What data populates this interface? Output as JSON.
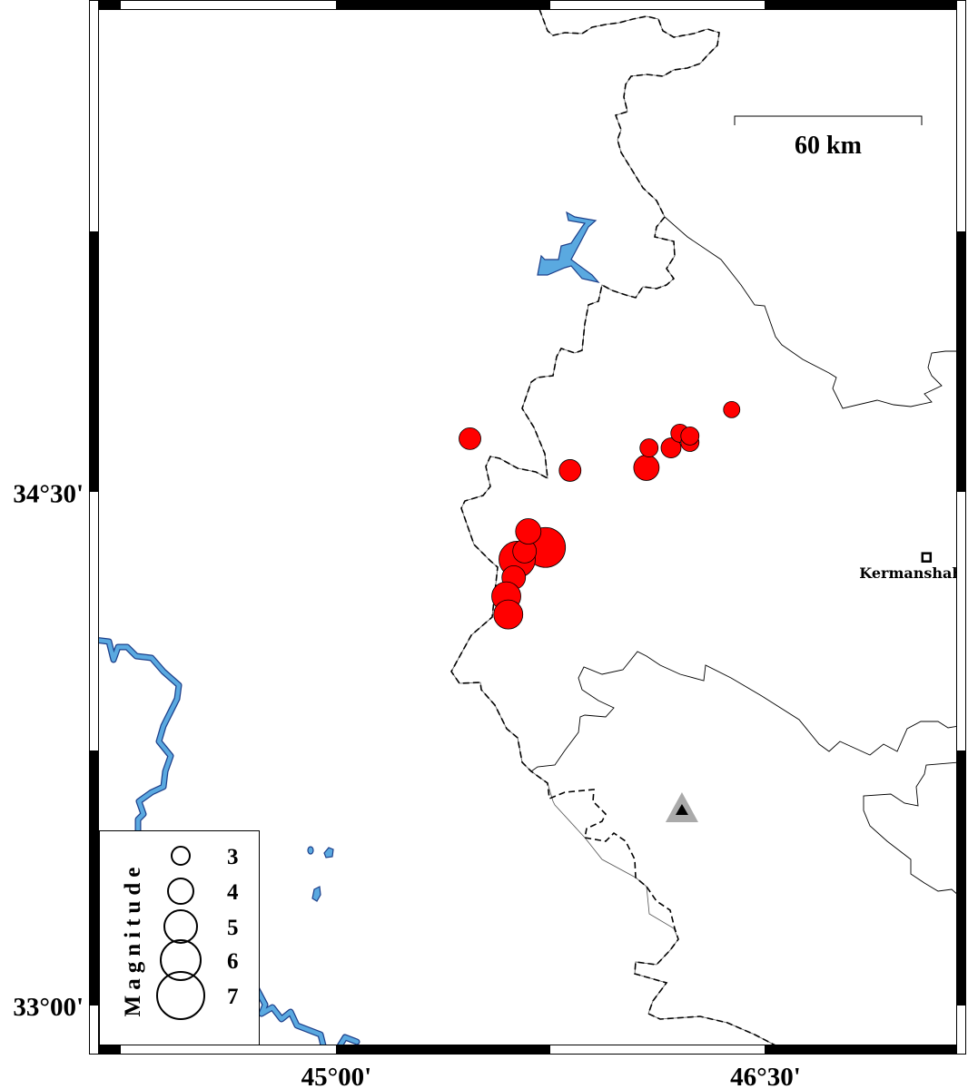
{
  "map": {
    "extent": {
      "lon_min": 44.167,
      "lon_max": 47.17,
      "lat_min": 32.88,
      "lat_max": 35.91
    },
    "x_ticks": [
      {
        "lon": 45.0,
        "label": "45°00'"
      },
      {
        "lon": 46.5,
        "label": "46°30'"
      }
    ],
    "y_ticks": [
      {
        "lat": 34.5,
        "label": "34°30'"
      },
      {
        "lat": 33.0,
        "label": "33°00'"
      }
    ],
    "scale_bar": {
      "label": "60 km",
      "km": 60
    },
    "colors": {
      "event_fill": "#ff0000",
      "water": "#5aa9e0",
      "station": "#aaaaaa"
    },
    "city": {
      "name": "Kermanshah",
      "lon": 47.063,
      "lat": 34.307,
      "icon": "square-icon"
    },
    "station": {
      "lon": 46.208,
      "lat": 33.57,
      "icon": "triangle-icon"
    },
    "events": [
      {
        "lon": 45.467,
        "lat": 34.654,
        "mag": 3.5
      },
      {
        "lon": 45.817,
        "lat": 34.561,
        "mag": 3.5
      },
      {
        "lon": 46.084,
        "lat": 34.569,
        "mag": 4.0
      },
      {
        "lon": 46.093,
        "lat": 34.627,
        "mag": 3.0
      },
      {
        "lon": 46.17,
        "lat": 34.627,
        "mag": 3.25
      },
      {
        "lon": 46.201,
        "lat": 34.67,
        "mag": 3.0
      },
      {
        "lon": 46.236,
        "lat": 34.643,
        "mag": 3.0
      },
      {
        "lon": 46.236,
        "lat": 34.662,
        "mag": 3.0
      },
      {
        "lon": 46.382,
        "lat": 34.739,
        "mag": 2.75
      },
      {
        "lon": 45.731,
        "lat": 34.336,
        "mag": 6.0
      },
      {
        "lon": 45.632,
        "lat": 34.301,
        "mag": 5.5
      },
      {
        "lon": 45.658,
        "lat": 34.325,
        "mag": 3.75
      },
      {
        "lon": 45.671,
        "lat": 34.383,
        "mag": 4.0
      },
      {
        "lon": 45.62,
        "lat": 34.248,
        "mag": 3.75
      },
      {
        "lon": 45.594,
        "lat": 34.193,
        "mag": 4.5
      },
      {
        "lon": 45.601,
        "lat": 34.14,
        "mag": 4.5
      }
    ]
  },
  "legend": {
    "title": "Magnitude",
    "items": [
      {
        "mag": 3,
        "label": "3"
      },
      {
        "mag": 4,
        "label": "4"
      },
      {
        "mag": 5,
        "label": "5"
      },
      {
        "mag": 6,
        "label": "6"
      },
      {
        "mag": 7,
        "label": "7"
      }
    ]
  }
}
